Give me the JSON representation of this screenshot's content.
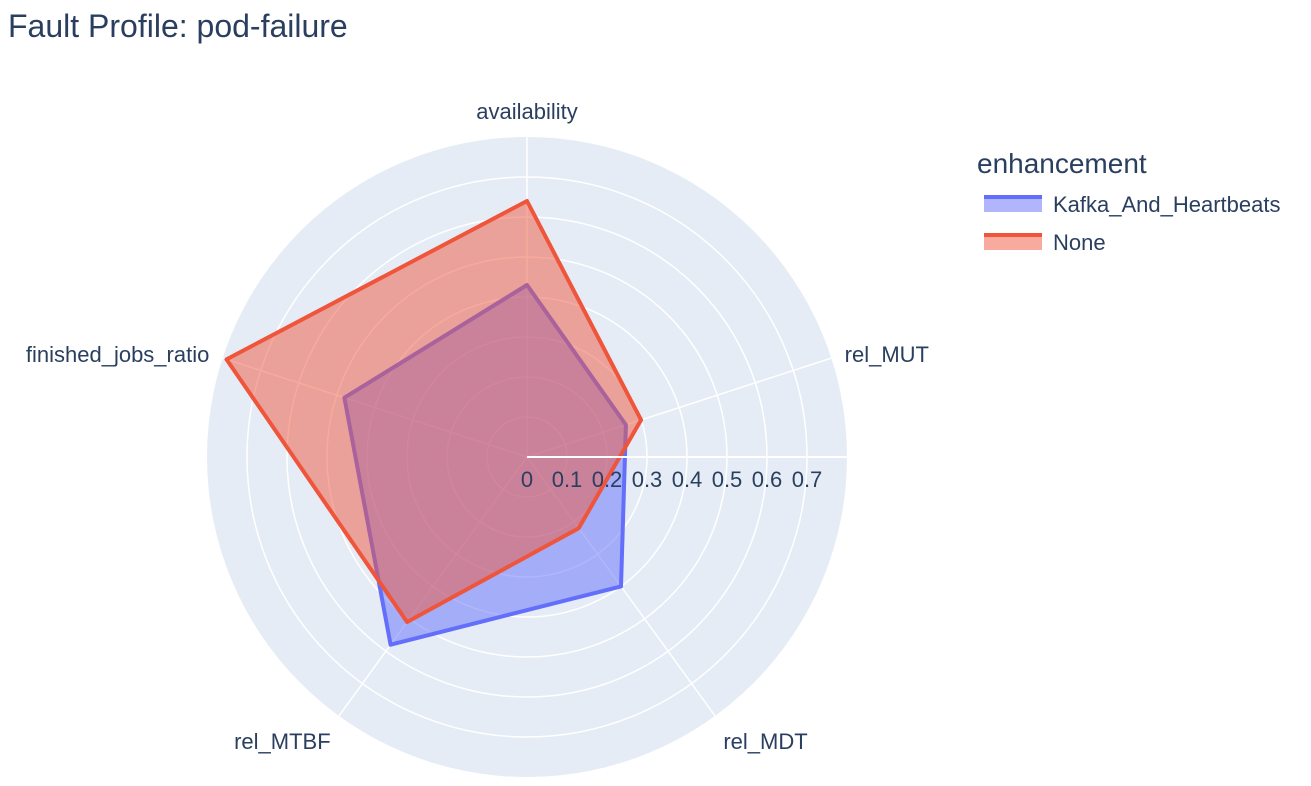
{
  "chart_data": {
    "type": "radar",
    "title": "Fault Profile: pod-failure",
    "axes": [
      "availability",
      "rel_MUT",
      "rel_MDT",
      "rel_MTBF",
      "finished_jobs_ratio"
    ],
    "radial_range": [
      0,
      0.8
    ],
    "radial_ticks": [
      0,
      0.1,
      0.2,
      0.3,
      0.4,
      0.5,
      0.6,
      0.7
    ],
    "radial_tick_labels": [
      "0",
      "0.1",
      "0.2",
      "0.3",
      "0.4",
      "0.5",
      "0.6",
      "0.7"
    ],
    "grid": true,
    "legend": {
      "title": "enhancement",
      "placement": "top-right"
    },
    "series": [
      {
        "name": "Kafka_And_Heartbeats",
        "color": "#636efa",
        "values": [
          0.43,
          0.26,
          0.4,
          0.58,
          0.48
        ]
      },
      {
        "name": "None",
        "color": "#ef553b",
        "values": [
          0.64,
          0.3,
          0.22,
          0.51,
          0.79
        ]
      }
    ],
    "colors": {
      "plot_background": "#e5ecf6",
      "grid": "#ffffff",
      "text": "#2a3f5f"
    }
  }
}
